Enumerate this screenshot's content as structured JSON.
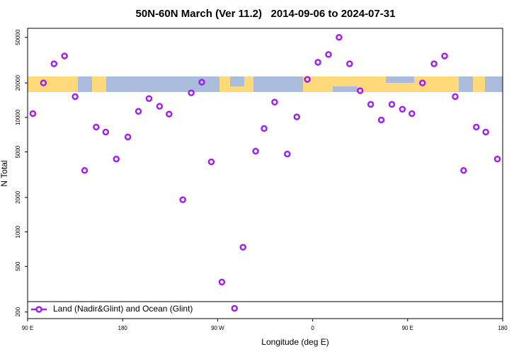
{
  "chart_data": {
    "type": "scatter",
    "title": "50N-60N March (Ver 11.2)   2014-09-06 to 2024-07-31",
    "x_label": "Longitude (deg E)",
    "y_label": "N Total",
    "log_y": true,
    "xlim": [
      90,
      540
    ],
    "xticks": [
      {
        "value": 90,
        "label": "90 E"
      },
      {
        "value": 180,
        "label": "180"
      },
      {
        "value": 270,
        "label": "90 W"
      },
      {
        "value": 360,
        "label": "0"
      },
      {
        "value": 450,
        "label": "90 E"
      },
      {
        "value": 540,
        "label": "180"
      }
    ],
    "ylim": [
      175,
      60000
    ],
    "yticks": [
      200,
      500,
      1000,
      2000,
      5000,
      10000,
      20000,
      50000
    ],
    "legend": "bottom-left",
    "series": [
      {
        "name": "Land (Nadir&Glint) and Ocean (Glint)",
        "color": "#a020f0",
        "x": [
          95,
          105,
          115,
          125,
          135,
          144,
          155,
          164,
          174,
          185,
          195,
          205,
          215,
          224,
          237,
          245,
          255,
          264,
          274,
          286,
          294,
          306,
          314,
          324,
          336,
          345,
          355,
          365,
          375,
          385,
          395,
          405,
          415,
          425,
          435,
          445,
          454,
          464,
          475,
          485,
          495,
          503,
          515,
          524,
          535
        ],
        "values": [
          10800,
          20000,
          29400,
          34400,
          15200,
          3440,
          8240,
          7450,
          4330,
          6750,
          11300,
          14600,
          12500,
          10700,
          1910,
          16400,
          20300,
          4090,
          365,
          215,
          735,
          5070,
          8000,
          13600,
          4790,
          10100,
          21500,
          30300,
          35400,
          50000,
          29400,
          17100,
          13000,
          9500,
          13000,
          11800,
          10800,
          20000,
          29400,
          34400,
          15200,
          3440,
          8240,
          7450,
          4330
        ]
      }
    ]
  }
}
